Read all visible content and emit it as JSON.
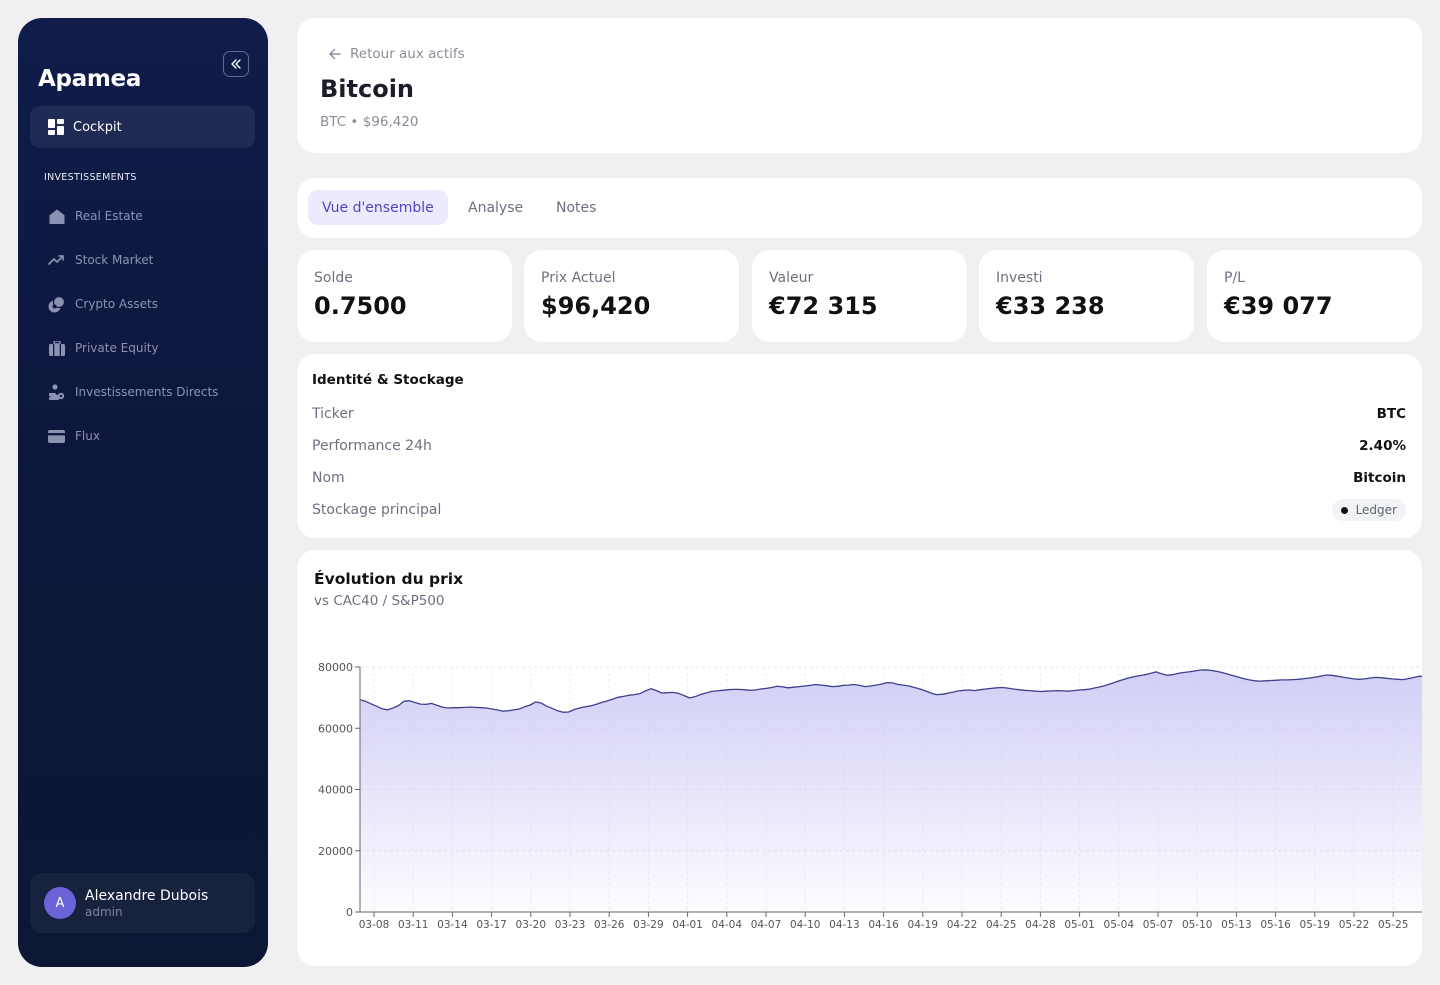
{
  "sidebar": {
    "brand": "Apamea",
    "active_item": "Cockpit",
    "section_label": "INVESTISSEMENTS",
    "items": [
      {
        "label": "Real Estate",
        "icon": "house-icon"
      },
      {
        "label": "Stock Market",
        "icon": "trend-up-icon"
      },
      {
        "label": "Crypto Assets",
        "icon": "coins-icon"
      },
      {
        "label": "Private Equity",
        "icon": "briefcase-icon"
      },
      {
        "label": "Investissements Directs",
        "icon": "hand-coin-icon"
      },
      {
        "label": "Flux",
        "icon": "card-icon"
      }
    ],
    "user": {
      "initial": "A",
      "name": "Alexandre Dubois",
      "role": "admin"
    }
  },
  "header": {
    "back_label": "Retour aux actifs",
    "title": "Bitcoin",
    "subtitle": "BTC • $96,420"
  },
  "tabs": [
    {
      "label": "Vue d'ensemble",
      "active": true
    },
    {
      "label": "Analyse",
      "active": false
    },
    {
      "label": "Notes",
      "active": false
    }
  ],
  "stats": [
    {
      "label": "Solde",
      "value": "0.7500"
    },
    {
      "label": "Prix Actuel",
      "value": "$96,420"
    },
    {
      "label": "Valeur",
      "value": "€72 315"
    },
    {
      "label": "Investi",
      "value": "€33 238"
    },
    {
      "label": "P/L",
      "value": "€39 077"
    }
  ],
  "identity": {
    "title": "Identité & Stockage",
    "rows": [
      {
        "key": "Ticker",
        "value": "BTC"
      },
      {
        "key": "Performance 24h",
        "value": "2.40%"
      },
      {
        "key": "Nom",
        "value": "Bitcoin"
      }
    ],
    "storage_label": "Stockage principal",
    "storage_value": "Ledger"
  },
  "colors": {
    "accent": "#4f46c7",
    "line": "#3f3f8f",
    "area": "#c9c6f4",
    "sidebar_bg": "#0e1a44"
  },
  "chart_data": {
    "type": "area",
    "title": "Évolution du prix",
    "subtitle": "vs CAC40 / S&P500",
    "xlabel": "",
    "ylabel": "",
    "ylim": [
      0,
      80000
    ],
    "yticks": [
      0,
      20000,
      40000,
      60000,
      80000
    ],
    "grid": true,
    "x_ticks": [
      "03-08",
      "03-11",
      "03-14",
      "03-17",
      "03-20",
      "03-23",
      "03-26",
      "03-29",
      "04-01",
      "04-04",
      "04-07",
      "04-10",
      "04-13",
      "04-16",
      "04-19",
      "04-22",
      "04-25",
      "04-28",
      "05-01",
      "05-04",
      "05-07",
      "05-10",
      "05-13",
      "05-16",
      "05-19",
      "05-22",
      "05-25",
      "0"
    ],
    "series": [
      {
        "values": [
          69300,
          68800,
          68000,
          67200,
          66400,
          66000,
          66600,
          67400,
          68800,
          69000,
          68400,
          67900,
          67800,
          68100,
          67500,
          66900,
          66600,
          66700,
          66700,
          66800,
          66900,
          66800,
          66700,
          66600,
          66300,
          66000,
          65600,
          65700,
          66000,
          66300,
          67000,
          67600,
          68600,
          68200,
          67200,
          66500,
          65700,
          65200,
          65300,
          66100,
          66600,
          67000,
          67300,
          67800,
          68400,
          68900,
          69500,
          70100,
          70400,
          70800,
          71000,
          71300,
          72200,
          72900,
          72300,
          71500,
          71600,
          71700,
          71400,
          70700,
          69900,
          70300,
          71000,
          71500,
          72000,
          72200,
          72400,
          72600,
          72700,
          72700,
          72600,
          72400,
          72500,
          72800,
          73000,
          73300,
          73700,
          73500,
          73200,
          73400,
          73600,
          73800,
          74000,
          74300,
          74100,
          73900,
          73600,
          73700,
          74000,
          74100,
          74300,
          74000,
          73600,
          73800,
          74100,
          74400,
          74900,
          74800,
          74300,
          74100,
          73800,
          73300,
          72800,
          72200,
          71500,
          71000,
          71100,
          71400,
          71800,
          72200,
          72400,
          72500,
          72300,
          72600,
          72800,
          73000,
          73200,
          73300,
          73100,
          72800,
          72600,
          72400,
          72300,
          72100,
          72000,
          72100,
          72200,
          72300,
          72200,
          72100,
          72300,
          72500,
          72600,
          72800,
          73200,
          73600,
          74100,
          74700,
          75300,
          75900,
          76400,
          76800,
          77200,
          77500,
          77900,
          78400,
          77800,
          77300,
          77500,
          77900,
          78200,
          78400,
          78700,
          79000,
          79100,
          78900,
          78600,
          78200,
          77700,
          77200,
          76700,
          76200,
          75800,
          75500,
          75400,
          75500,
          75600,
          75700,
          75800,
          75800,
          75900,
          76000,
          76200,
          76400,
          76700,
          77000,
          77400,
          77300,
          77000,
          76700,
          76400,
          76100,
          76000,
          76100,
          76400,
          76600,
          76500,
          76300,
          76100,
          76000,
          75900,
          76200,
          76600,
          77000,
          76800
        ],
        "color": "#3f3f8f"
      }
    ]
  }
}
